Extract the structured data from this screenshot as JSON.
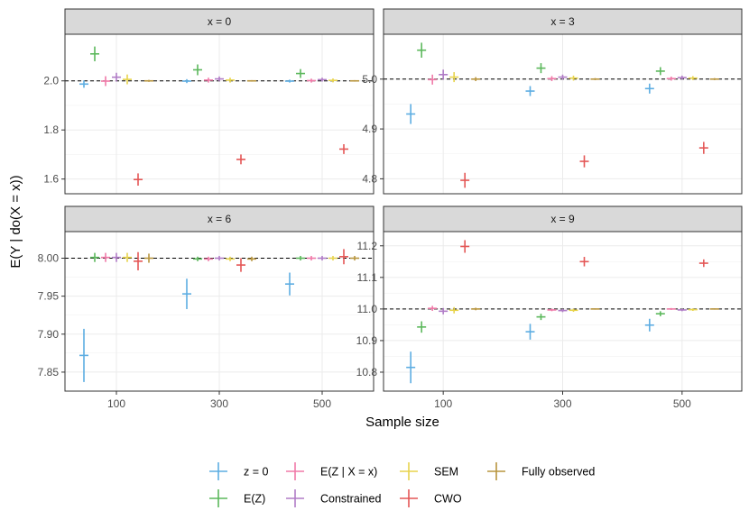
{
  "chart_data": {
    "type": "scatter",
    "subtype": "faceted point estimates with error bars (crosses)",
    "xlabel": "Sample size",
    "ylabel": "E(Y | do(X = x))",
    "x_ticks": [
      100,
      300,
      500
    ],
    "x_range": [
      0,
      600
    ],
    "sample_sizes": [
      100,
      300,
      500
    ],
    "series_order": [
      "z = 0",
      "E(Z)",
      "E(Z | X = x)",
      "Constrained",
      "SEM",
      "CWO",
      "Fully observed"
    ],
    "series_colors": {
      "z = 0": "#5DADE2",
      "E(Z)": "#5CB85C",
      "E(Z | X = x)": "#F07AA8",
      "Constrained": "#B07CC6",
      "SEM": "#E8D44D",
      "CWO": "#E45756",
      "Fully observed": "#B8953E"
    },
    "legend": {
      "position": "bottom",
      "rows": [
        [
          "z = 0",
          "E(Z | X = x)",
          "SEM",
          "Fully observed"
        ],
        [
          "E(Z)",
          "Constrained",
          "CWO"
        ]
      ]
    },
    "panels": [
      {
        "title": "x = 0",
        "reference": 2.0,
        "ylim": [
          1.54,
          2.19
        ],
        "y_ticks": [
          1.6,
          1.8,
          2.0
        ],
        "y_tick_labels": [
          "1.6",
          "1.8",
          "2.0"
        ],
        "show_x_ticks": false,
        "points": {
          "z = 0": [
            [
              100,
              1.987,
              0.015
            ],
            [
              300,
              1.999,
              0.008
            ],
            [
              500,
              1.999,
              0.006
            ]
          ],
          "E(Z)": [
            [
              100,
              2.11,
              0.03
            ],
            [
              300,
              2.045,
              0.022
            ],
            [
              500,
              2.03,
              0.018
            ]
          ],
          "E(Z | X = x)": [
            [
              100,
              1.999,
              0.02
            ],
            [
              300,
              2.003,
              0.01
            ],
            [
              500,
              2.001,
              0.008
            ]
          ],
          "Constrained": [
            [
              100,
              2.015,
              0.018
            ],
            [
              300,
              2.008,
              0.01
            ],
            [
              500,
              2.005,
              0.008
            ]
          ],
          "SEM": [
            [
              100,
              2.006,
              0.02
            ],
            [
              300,
              2.003,
              0.01
            ],
            [
              500,
              2.002,
              0.008
            ]
          ],
          "CWO": [
            [
              100,
              1.598,
              0.025
            ],
            [
              300,
              1.68,
              0.02
            ],
            [
              500,
              1.722,
              0.02
            ]
          ],
          "Fully observed": [
            [
              100,
              2.0,
              0.004
            ],
            [
              300,
              2.0,
              0.003
            ],
            [
              500,
              2.0,
              0.003
            ]
          ]
        }
      },
      {
        "title": "x = 3",
        "reference": 5.0,
        "ylim": [
          4.77,
          5.09
        ],
        "y_ticks": [
          4.8,
          4.9,
          5.0
        ],
        "y_tick_labels": [
          "4.8",
          "4.9",
          "5.0"
        ],
        "show_x_ticks": false,
        "points": {
          "z = 0": [
            [
              100,
              4.93,
              0.02
            ],
            [
              300,
              4.976,
              0.01
            ],
            [
              500,
              4.981,
              0.01
            ]
          ],
          "E(Z)": [
            [
              100,
              5.058,
              0.015
            ],
            [
              300,
              5.022,
              0.01
            ],
            [
              500,
              5.016,
              0.008
            ]
          ],
          "E(Z | X = x)": [
            [
              100,
              4.999,
              0.01
            ],
            [
              300,
              5.001,
              0.005
            ],
            [
              500,
              5.001,
              0.004
            ]
          ],
          "Constrained": [
            [
              100,
              5.009,
              0.01
            ],
            [
              300,
              5.004,
              0.005
            ],
            [
              500,
              5.003,
              0.004
            ]
          ],
          "SEM": [
            [
              100,
              5.004,
              0.01
            ],
            [
              300,
              5.002,
              0.005
            ],
            [
              500,
              5.002,
              0.004
            ]
          ],
          "CWO": [
            [
              100,
              4.797,
              0.015
            ],
            [
              300,
              4.835,
              0.012
            ],
            [
              500,
              4.862,
              0.012
            ]
          ],
          "Fully observed": [
            [
              100,
              5.0,
              0.004
            ],
            [
              300,
              5.0,
              0.002
            ],
            [
              500,
              5.0,
              0.002
            ]
          ]
        }
      },
      {
        "title": "x = 6",
        "reference": 8.0,
        "ylim": [
          7.825,
          8.035
        ],
        "y_ticks": [
          7.85,
          7.9,
          7.95,
          8.0
        ],
        "y_tick_labels": [
          "7.85",
          "7.90",
          "7.95",
          "8.00"
        ],
        "show_x_ticks": true,
        "points": {
          "z = 0": [
            [
              100,
              7.872,
              0.035
            ],
            [
              300,
              7.953,
              0.02
            ],
            [
              500,
              7.966,
              0.015
            ]
          ],
          "E(Z)": [
            [
              100,
              8.001,
              0.006
            ],
            [
              300,
              7.999,
              0.003
            ],
            [
              500,
              8.0,
              0.003
            ]
          ],
          "E(Z | X = x)": [
            [
              100,
              8.001,
              0.006
            ],
            [
              300,
              7.999,
              0.003
            ],
            [
              500,
              8.0,
              0.003
            ]
          ],
          "Constrained": [
            [
              100,
              8.001,
              0.006
            ],
            [
              300,
              8.0,
              0.003
            ],
            [
              500,
              8.0,
              0.003
            ]
          ],
          "SEM": [
            [
              100,
              8.001,
              0.006
            ],
            [
              300,
              7.999,
              0.003
            ],
            [
              500,
              8.0,
              0.003
            ]
          ],
          "CWO": [
            [
              100,
              7.996,
              0.012
            ],
            [
              300,
              7.991,
              0.009
            ],
            [
              500,
              8.002,
              0.01
            ]
          ],
          "Fully observed": [
            [
              100,
              8.0,
              0.006
            ],
            [
              300,
              7.999,
              0.003
            ],
            [
              500,
              8.0,
              0.003
            ]
          ]
        }
      },
      {
        "title": "x = 9",
        "reference": 11.0,
        "ylim": [
          10.74,
          11.245
        ],
        "y_ticks": [
          10.8,
          10.9,
          11.0,
          11.1,
          11.2
        ],
        "y_tick_labels": [
          "10.8",
          "10.9",
          "11.0",
          "11.1",
          "11.2"
        ],
        "show_x_ticks": true,
        "points": {
          "z = 0": [
            [
              100,
              10.815,
              0.05
            ],
            [
              300,
              10.928,
              0.025
            ],
            [
              500,
              10.949,
              0.02
            ]
          ],
          "E(Z)": [
            [
              100,
              10.943,
              0.018
            ],
            [
              300,
              10.975,
              0.01
            ],
            [
              500,
              10.985,
              0.008
            ]
          ],
          "E(Z | X = x)": [
            [
              100,
              11.002,
              0.008
            ],
            [
              300,
              10.997,
              0.004
            ],
            [
              500,
              11.0,
              0.003
            ]
          ],
          "Constrained": [
            [
              100,
              10.993,
              0.01
            ],
            [
              300,
              10.995,
              0.005
            ],
            [
              500,
              10.997,
              0.004
            ]
          ],
          "SEM": [
            [
              100,
              10.996,
              0.01
            ],
            [
              300,
              10.996,
              0.005
            ],
            [
              500,
              10.998,
              0.004
            ]
          ],
          "CWO": [
            [
              100,
              11.198,
              0.02
            ],
            [
              300,
              11.15,
              0.015
            ],
            [
              500,
              11.145,
              0.012
            ]
          ],
          "Fully observed": [
            [
              100,
              11.0,
              0.004
            ],
            [
              300,
              11.0,
              0.002
            ],
            [
              500,
              11.0,
              0.002
            ]
          ]
        }
      }
    ]
  }
}
